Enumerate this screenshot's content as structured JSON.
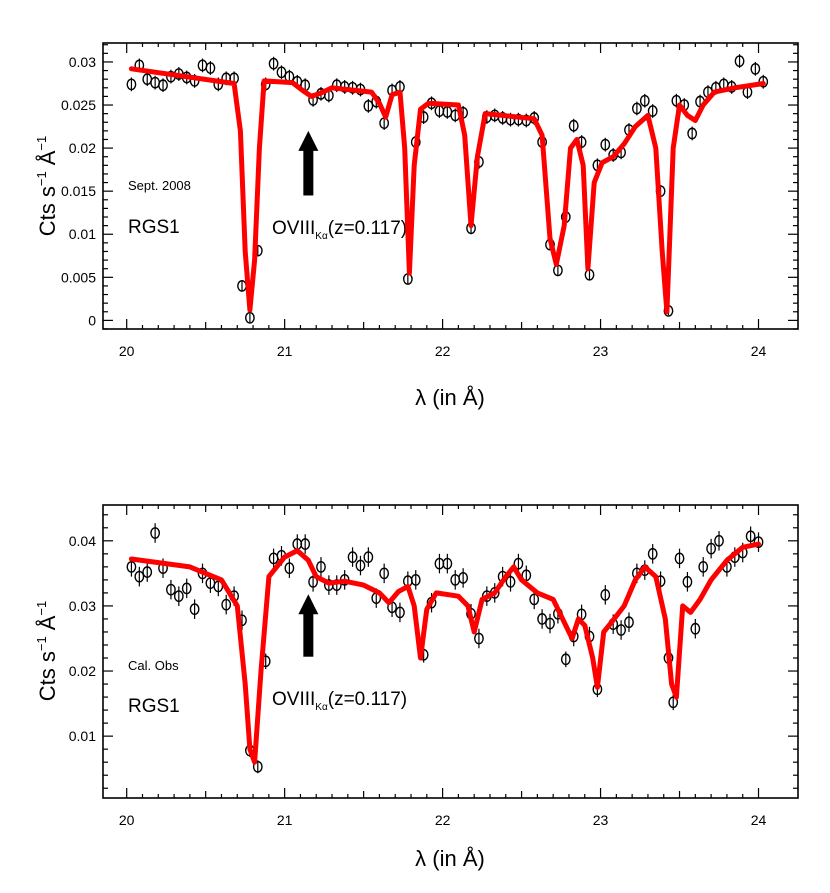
{
  "chart_data": [
    {
      "type": "scatter",
      "name": "top-panel",
      "ylabel": "Cts s",
      "ylabel_exp1": "−1",
      "ylabel_mid": "Å",
      "ylabel_exp2": "−1",
      "xlabel": "λ (in Å)",
      "xlim": [
        19.85,
        24.25
      ],
      "ylim": [
        -0.001,
        0.0322
      ],
      "xticks": [
        20,
        21,
        22,
        23,
        24
      ],
      "yticks": [
        0,
        0.005,
        0.01,
        0.015,
        0.02,
        0.025,
        0.03
      ],
      "ytick_labels": [
        "0",
        "0.005",
        "0.01",
        "0.015",
        "0.02",
        "0.025",
        "0.03"
      ],
      "obs_label": "Sept. 2008",
      "instrument_label": "RGS1",
      "annotation": {
        "main": "OVIII",
        "sub": "Kα",
        "tail": "(z=0.117)",
        "arrow_x": 21.15,
        "arrow_y_top": 0.022,
        "arrow_y_bottom": 0.0145
      },
      "points": [
        [
          20.03,
          0.0274,
          0.0008
        ],
        [
          20.08,
          0.0296,
          0.0008
        ],
        [
          20.13,
          0.028,
          0.0008
        ],
        [
          20.18,
          0.0276,
          0.0008
        ],
        [
          20.23,
          0.0273,
          0.0008
        ],
        [
          20.28,
          0.0283,
          0.0008
        ],
        [
          20.33,
          0.0286,
          0.0008
        ],
        [
          20.38,
          0.0282,
          0.0008
        ],
        [
          20.43,
          0.0278,
          0.0008
        ],
        [
          20.48,
          0.0296,
          0.0008
        ],
        [
          20.53,
          0.0293,
          0.0008
        ],
        [
          20.58,
          0.0274,
          0.0008
        ],
        [
          20.63,
          0.0281,
          0.0008
        ],
        [
          20.68,
          0.0281,
          0.0008
        ],
        [
          20.73,
          0.004,
          0.0006
        ],
        [
          20.78,
          0.0003,
          0.0005
        ],
        [
          20.83,
          0.0081,
          0.0006
        ],
        [
          20.88,
          0.0274,
          0.0008
        ],
        [
          20.93,
          0.0298,
          0.0008
        ],
        [
          20.98,
          0.0288,
          0.0008
        ],
        [
          21.03,
          0.0283,
          0.0008
        ],
        [
          21.08,
          0.0277,
          0.0008
        ],
        [
          21.13,
          0.0273,
          0.0008
        ],
        [
          21.18,
          0.0256,
          0.0008
        ],
        [
          21.23,
          0.0263,
          0.0008
        ],
        [
          21.28,
          0.0261,
          0.0008
        ],
        [
          21.33,
          0.0273,
          0.0008
        ],
        [
          21.38,
          0.0271,
          0.0008
        ],
        [
          21.43,
          0.027,
          0.0008
        ],
        [
          21.48,
          0.0268,
          0.0008
        ],
        [
          21.53,
          0.0249,
          0.0008
        ],
        [
          21.58,
          0.0254,
          0.0008
        ],
        [
          21.63,
          0.0229,
          0.0008
        ],
        [
          21.68,
          0.0267,
          0.0008
        ],
        [
          21.73,
          0.0271,
          0.0008
        ],
        [
          21.78,
          0.0048,
          0.0006
        ],
        [
          21.83,
          0.0207,
          0.0008
        ],
        [
          21.88,
          0.0236,
          0.0008
        ],
        [
          21.93,
          0.0252,
          0.0008
        ],
        [
          21.98,
          0.0243,
          0.0008
        ],
        [
          22.03,
          0.0242,
          0.0008
        ],
        [
          22.08,
          0.0238,
          0.0008
        ],
        [
          22.13,
          0.0241,
          0.0008
        ],
        [
          22.18,
          0.0107,
          0.0007
        ],
        [
          22.23,
          0.0184,
          0.0008
        ],
        [
          22.28,
          0.0236,
          0.0008
        ],
        [
          22.33,
          0.0238,
          0.0008
        ],
        [
          22.38,
          0.0235,
          0.0008
        ],
        [
          22.43,
          0.0233,
          0.0008
        ],
        [
          22.48,
          0.0233,
          0.0008
        ],
        [
          22.53,
          0.0232,
          0.0008
        ],
        [
          22.58,
          0.0235,
          0.0008
        ],
        [
          22.63,
          0.0207,
          0.0008
        ],
        [
          22.68,
          0.0088,
          0.0006
        ],
        [
          22.73,
          0.0058,
          0.0006
        ],
        [
          22.78,
          0.012,
          0.0007
        ],
        [
          22.83,
          0.0226,
          0.0008
        ],
        [
          22.88,
          0.0207,
          0.0008
        ],
        [
          22.93,
          0.0053,
          0.0006
        ],
        [
          22.98,
          0.018,
          0.0008
        ],
        [
          23.03,
          0.0204,
          0.0008
        ],
        [
          23.08,
          0.0192,
          0.0008
        ],
        [
          23.13,
          0.0195,
          0.0008
        ],
        [
          23.18,
          0.0221,
          0.0008
        ],
        [
          23.23,
          0.0246,
          0.0008
        ],
        [
          23.28,
          0.0255,
          0.0008
        ],
        [
          23.33,
          0.0243,
          0.0008
        ],
        [
          23.38,
          0.015,
          0.0007
        ],
        [
          23.43,
          0.0011,
          0.0005
        ],
        [
          23.48,
          0.0255,
          0.0008
        ],
        [
          23.53,
          0.025,
          0.0008
        ],
        [
          23.58,
          0.0217,
          0.0008
        ],
        [
          23.63,
          0.0254,
          0.0008
        ],
        [
          23.68,
          0.0265,
          0.0008
        ],
        [
          23.73,
          0.027,
          0.0008
        ],
        [
          23.78,
          0.0274,
          0.0008
        ],
        [
          23.83,
          0.0271,
          0.0008
        ],
        [
          23.88,
          0.0301,
          0.0008
        ],
        [
          23.93,
          0.0265,
          0.0008
        ],
        [
          23.98,
          0.0292,
          0.0008
        ],
        [
          24.03,
          0.0277,
          0.0008
        ]
      ],
      "model": [
        [
          20.03,
          0.0292
        ],
        [
          20.68,
          0.0275
        ],
        [
          20.72,
          0.022
        ],
        [
          20.75,
          0.008
        ],
        [
          20.78,
          0.0012
        ],
        [
          20.81,
          0.007
        ],
        [
          20.84,
          0.02
        ],
        [
          20.87,
          0.0278
        ],
        [
          21.05,
          0.0276
        ],
        [
          21.12,
          0.0266
        ],
        [
          21.17,
          0.026
        ],
        [
          21.23,
          0.0264
        ],
        [
          21.3,
          0.027
        ],
        [
          21.55,
          0.0265
        ],
        [
          21.6,
          0.0252
        ],
        [
          21.64,
          0.0236
        ],
        [
          21.68,
          0.0262
        ],
        [
          21.73,
          0.0265
        ],
        [
          21.76,
          0.02
        ],
        [
          21.79,
          0.0055
        ],
        [
          21.82,
          0.018
        ],
        [
          21.86,
          0.0245
        ],
        [
          21.91,
          0.0252
        ],
        [
          22.1,
          0.025
        ],
        [
          22.14,
          0.0215
        ],
        [
          22.18,
          0.011
        ],
        [
          22.22,
          0.019
        ],
        [
          22.27,
          0.024
        ],
        [
          22.58,
          0.0234
        ],
        [
          22.63,
          0.0215
        ],
        [
          22.68,
          0.0095
        ],
        [
          22.72,
          0.0065
        ],
        [
          22.77,
          0.011
        ],
        [
          22.81,
          0.02
        ],
        [
          22.85,
          0.021
        ],
        [
          22.89,
          0.018
        ],
        [
          22.92,
          0.006
        ],
        [
          22.96,
          0.016
        ],
        [
          23.01,
          0.0183
        ],
        [
          23.08,
          0.019
        ],
        [
          23.15,
          0.0205
        ],
        [
          23.22,
          0.0225
        ],
        [
          23.3,
          0.0238
        ],
        [
          23.35,
          0.02
        ],
        [
          23.39,
          0.008
        ],
        [
          23.42,
          0.001
        ],
        [
          23.46,
          0.02
        ],
        [
          23.5,
          0.025
        ],
        [
          23.55,
          0.0238
        ],
        [
          23.6,
          0.0232
        ],
        [
          23.65,
          0.025
        ],
        [
          23.72,
          0.0265
        ],
        [
          23.85,
          0.027
        ],
        [
          24.03,
          0.0275
        ]
      ]
    },
    {
      "type": "scatter",
      "name": "bottom-panel",
      "ylabel": "Cts s",
      "ylabel_exp1": "−1",
      "ylabel_mid": "Å",
      "ylabel_exp2": "−1",
      "xlabel": "λ (in Å)",
      "xlim": [
        19.85,
        24.25
      ],
      "ylim": [
        0.0005,
        0.0455
      ],
      "xticks": [
        20,
        21,
        22,
        23,
        24
      ],
      "yticks": [
        0.01,
        0.02,
        0.03,
        0.04
      ],
      "ytick_labels": [
        "0.01",
        "0.02",
        "0.03",
        "0.04"
      ],
      "obs_label": "Cal. Obs",
      "instrument_label": "RGS1",
      "annotation": {
        "main": "OVIII",
        "sub": "Kα",
        "tail": "(z=0.117)",
        "arrow_x": 21.15,
        "arrow_y_top": 0.0318,
        "arrow_y_bottom": 0.0222
      },
      "points": [
        [
          20.03,
          0.036,
          0.0015
        ],
        [
          20.08,
          0.0345,
          0.0015
        ],
        [
          20.13,
          0.0352,
          0.0015
        ],
        [
          20.18,
          0.0412,
          0.0015
        ],
        [
          20.23,
          0.0358,
          0.0015
        ],
        [
          20.28,
          0.0325,
          0.0015
        ],
        [
          20.33,
          0.0315,
          0.0015
        ],
        [
          20.38,
          0.0327,
          0.0015
        ],
        [
          20.43,
          0.0295,
          0.0015
        ],
        [
          20.48,
          0.035,
          0.0015
        ],
        [
          20.53,
          0.0335,
          0.0015
        ],
        [
          20.58,
          0.033,
          0.0015
        ],
        [
          20.63,
          0.0302,
          0.0015
        ],
        [
          20.68,
          0.0315,
          0.0015
        ],
        [
          20.73,
          0.0278,
          0.0015
        ],
        [
          20.78,
          0.0078,
          0.001
        ],
        [
          20.83,
          0.0053,
          0.001
        ],
        [
          20.88,
          0.0215,
          0.0012
        ],
        [
          20.93,
          0.0373,
          0.0015
        ],
        [
          20.98,
          0.0377,
          0.0015
        ],
        [
          21.03,
          0.0358,
          0.0015
        ],
        [
          21.08,
          0.0395,
          0.0015
        ],
        [
          21.13,
          0.0395,
          0.0015
        ],
        [
          21.18,
          0.0337,
          0.0015
        ],
        [
          21.23,
          0.036,
          0.0015
        ],
        [
          21.28,
          0.0332,
          0.0015
        ],
        [
          21.33,
          0.0332,
          0.0015
        ],
        [
          21.38,
          0.034,
          0.0015
        ],
        [
          21.43,
          0.0375,
          0.0015
        ],
        [
          21.48,
          0.0362,
          0.0015
        ],
        [
          21.53,
          0.0375,
          0.0015
        ],
        [
          21.58,
          0.0312,
          0.0015
        ],
        [
          21.63,
          0.035,
          0.0015
        ],
        [
          21.68,
          0.0298,
          0.0015
        ],
        [
          21.73,
          0.029,
          0.0015
        ],
        [
          21.78,
          0.0338,
          0.0015
        ],
        [
          21.83,
          0.034,
          0.0015
        ],
        [
          21.88,
          0.0225,
          0.0012
        ],
        [
          21.93,
          0.0305,
          0.0015
        ],
        [
          21.98,
          0.0365,
          0.0015
        ],
        [
          22.03,
          0.0365,
          0.0015
        ],
        [
          22.08,
          0.034,
          0.0015
        ],
        [
          22.13,
          0.0343,
          0.0015
        ],
        [
          22.18,
          0.0288,
          0.0015
        ],
        [
          22.23,
          0.025,
          0.0015
        ],
        [
          22.28,
          0.0315,
          0.0015
        ],
        [
          22.33,
          0.032,
          0.0015
        ],
        [
          22.38,
          0.0345,
          0.0015
        ],
        [
          22.43,
          0.0337,
          0.0015
        ],
        [
          22.48,
          0.0365,
          0.0015
        ],
        [
          22.53,
          0.0347,
          0.0015
        ],
        [
          22.58,
          0.031,
          0.0015
        ],
        [
          22.63,
          0.028,
          0.0015
        ],
        [
          22.68,
          0.0273,
          0.0015
        ],
        [
          22.73,
          0.0288,
          0.0015
        ],
        [
          22.78,
          0.0218,
          0.0012
        ],
        [
          22.83,
          0.0253,
          0.0015
        ],
        [
          22.88,
          0.0287,
          0.0015
        ],
        [
          22.93,
          0.0253,
          0.0015
        ],
        [
          22.98,
          0.0172,
          0.0012
        ],
        [
          23.03,
          0.0317,
          0.0015
        ],
        [
          23.08,
          0.0272,
          0.0015
        ],
        [
          23.13,
          0.0263,
          0.0015
        ],
        [
          23.18,
          0.0275,
          0.0015
        ],
        [
          23.23,
          0.035,
          0.0015
        ],
        [
          23.28,
          0.0355,
          0.0015
        ],
        [
          23.33,
          0.038,
          0.0015
        ],
        [
          23.38,
          0.0338,
          0.0015
        ],
        [
          23.43,
          0.022,
          0.0012
        ],
        [
          23.46,
          0.0152,
          0.0012
        ],
        [
          23.5,
          0.0373,
          0.0015
        ],
        [
          23.55,
          0.0337,
          0.0015
        ],
        [
          23.6,
          0.0265,
          0.0015
        ],
        [
          23.65,
          0.036,
          0.0015
        ],
        [
          23.7,
          0.0388,
          0.0015
        ],
        [
          23.75,
          0.04,
          0.0015
        ],
        [
          23.8,
          0.036,
          0.0015
        ],
        [
          23.85,
          0.0375,
          0.0015
        ],
        [
          23.9,
          0.0382,
          0.0015
        ],
        [
          23.95,
          0.0407,
          0.0015
        ],
        [
          24.0,
          0.0398,
          0.0015
        ]
      ],
      "model": [
        [
          20.03,
          0.0372
        ],
        [
          20.4,
          0.036
        ],
        [
          20.6,
          0.034
        ],
        [
          20.7,
          0.03
        ],
        [
          20.75,
          0.018
        ],
        [
          20.78,
          0.008
        ],
        [
          20.81,
          0.006
        ],
        [
          20.85,
          0.02
        ],
        [
          20.9,
          0.0345
        ],
        [
          21.0,
          0.0375
        ],
        [
          21.08,
          0.0385
        ],
        [
          21.15,
          0.037
        ],
        [
          21.2,
          0.0345
        ],
        [
          21.28,
          0.0335
        ],
        [
          21.38,
          0.0338
        ],
        [
          21.5,
          0.0332
        ],
        [
          21.6,
          0.032
        ],
        [
          21.66,
          0.0305
        ],
        [
          21.72,
          0.0322
        ],
        [
          21.78,
          0.033
        ],
        [
          21.82,
          0.03
        ],
        [
          21.86,
          0.022
        ],
        [
          21.9,
          0.0295
        ],
        [
          21.96,
          0.032
        ],
        [
          22.1,
          0.0315
        ],
        [
          22.16,
          0.03
        ],
        [
          22.2,
          0.026
        ],
        [
          22.25,
          0.031
        ],
        [
          22.33,
          0.032
        ],
        [
          22.4,
          0.0345
        ],
        [
          22.45,
          0.036
        ],
        [
          22.5,
          0.034
        ],
        [
          22.6,
          0.032
        ],
        [
          22.7,
          0.031
        ],
        [
          22.77,
          0.0275
        ],
        [
          22.82,
          0.025
        ],
        [
          22.86,
          0.028
        ],
        [
          22.9,
          0.027
        ],
        [
          22.95,
          0.022
        ],
        [
          22.98,
          0.0175
        ],
        [
          23.02,
          0.026
        ],
        [
          23.07,
          0.0275
        ],
        [
          23.15,
          0.03
        ],
        [
          23.22,
          0.034
        ],
        [
          23.28,
          0.036
        ],
        [
          23.35,
          0.0345
        ],
        [
          23.41,
          0.028
        ],
        [
          23.45,
          0.018
        ],
        [
          23.48,
          0.016
        ],
        [
          23.52,
          0.03
        ],
        [
          23.57,
          0.029
        ],
        [
          23.63,
          0.031
        ],
        [
          23.7,
          0.034
        ],
        [
          23.8,
          0.037
        ],
        [
          23.9,
          0.039
        ],
        [
          24.0,
          0.0395
        ]
      ]
    }
  ]
}
